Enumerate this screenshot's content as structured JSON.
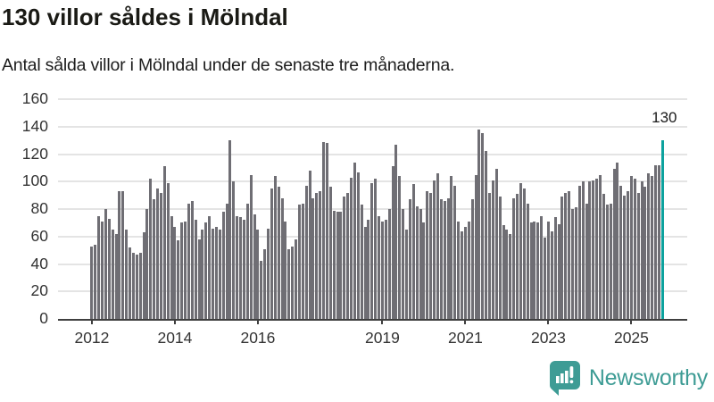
{
  "header": {
    "title": "130 villor såldes i Mölndal",
    "subtitle": "Antal sålda villor i Mölndal under de senaste tre månaderna."
  },
  "annotation": {
    "label": "130"
  },
  "footer": {
    "brand": "Newsworthy"
  },
  "colors": {
    "bar": "#6f6e74",
    "highlight": "#0da29e",
    "grid": "#e4e4e4",
    "axis": "#3f3f3f",
    "tick_label": "#333333",
    "brand": "#3e9c95",
    "annotation_text": "#1a1a1a"
  },
  "chart_data": {
    "type": "bar",
    "title": "130 villor såldes i Mölndal",
    "subtitle": "Antal sålda villor i Mölndal under de senaste tre månaderna.",
    "ylabel": "",
    "xlabel": "",
    "ylim": [
      0,
      160
    ],
    "yticks": [
      0,
      20,
      40,
      60,
      80,
      100,
      120,
      140,
      160
    ],
    "grid": "horizontal",
    "legend": "none",
    "x_start_month": "2012-01",
    "x_end_month": "2025-10",
    "x_tick_labels": [
      {
        "label": "2012",
        "month_index": 0
      },
      {
        "label": "2014",
        "month_index": 24
      },
      {
        "label": "2016",
        "month_index": 48
      },
      {
        "label": "2019",
        "month_index": 84
      },
      {
        "label": "2021",
        "month_index": 108
      },
      {
        "label": "2023",
        "month_index": 132
      },
      {
        "label": "2025",
        "month_index": 156
      }
    ],
    "values": [
      53,
      54,
      75,
      71,
      80,
      73,
      65,
      62,
      93,
      93,
      65,
      52,
      48,
      47,
      48,
      63,
      80,
      102,
      87,
      95,
      92,
      111,
      99,
      75,
      67,
      57,
      70,
      71,
      84,
      86,
      72,
      58,
      65,
      70,
      75,
      66,
      67,
      65,
      78,
      84,
      130,
      100,
      75,
      74,
      72,
      84,
      105,
      76,
      65,
      42,
      51,
      66,
      95,
      104,
      96,
      88,
      71,
      51,
      53,
      58,
      83,
      84,
      97,
      108,
      88,
      92,
      93,
      129,
      128,
      96,
      79,
      78,
      78,
      89,
      92,
      103,
      114,
      107,
      83,
      67,
      72,
      99,
      102,
      75,
      71,
      72,
      80,
      111,
      127,
      104,
      80,
      65,
      87,
      98,
      82,
      80,
      70,
      93,
      92,
      101,
      106,
      87,
      86,
      88,
      104,
      97,
      71,
      64,
      67,
      71,
      87,
      105,
      138,
      135,
      122,
      92,
      101,
      109,
      89,
      68,
      65,
      62,
      88,
      91,
      99,
      95,
      84,
      70,
      71,
      70,
      75,
      59,
      71,
      64,
      74,
      69,
      89,
      92,
      93,
      80,
      81,
      97,
      100,
      84,
      100,
      101,
      102,
      105,
      91,
      83,
      84,
      109,
      114,
      97,
      90,
      93,
      104,
      102,
      92,
      100,
      96,
      106,
      104,
      112,
      112,
      130
    ],
    "highlight_last_value": 130
  }
}
